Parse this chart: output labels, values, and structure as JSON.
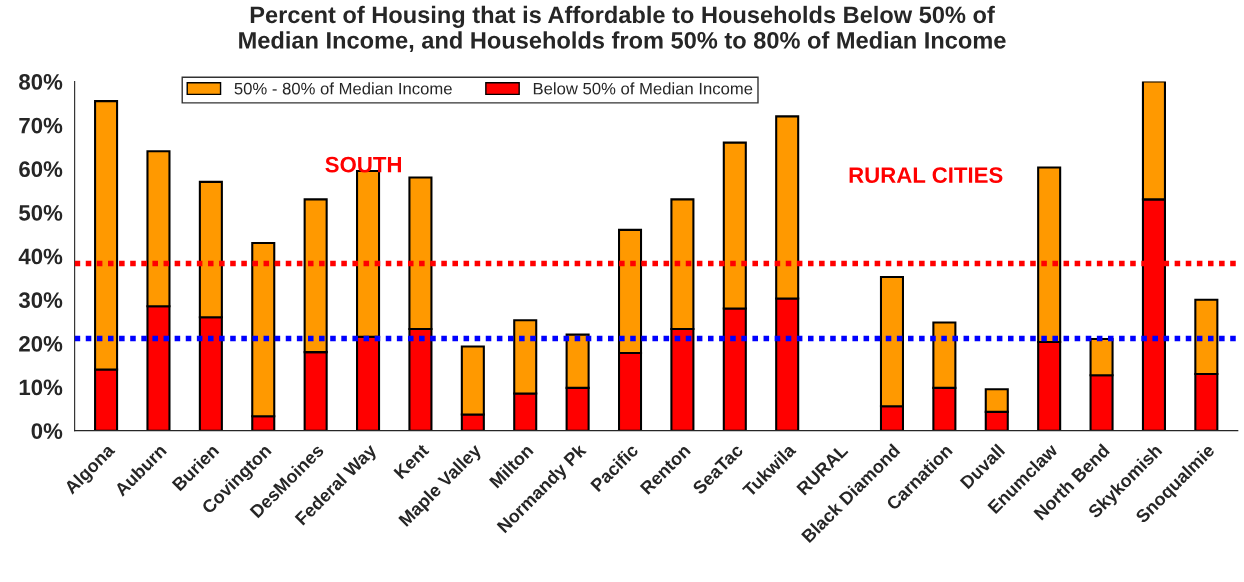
{
  "chart_data": {
    "type": "bar",
    "title": "Percent of Housing that is Affordable to Households Below 50% of\nMedian Income, and Households from 50% to 80% of Median Income",
    "categories": [
      "Algona",
      "Auburn",
      "Burien",
      "Covington",
      "DesMoines",
      "Federal Way",
      "Kent",
      "Maple Valley",
      "Milton",
      "Normandy Pk",
      "Pacific",
      "Renton",
      "SeaTac",
      "Tukwila",
      "RURAL",
      "Black Diamond",
      "Carnation",
      "Duvall",
      "Enumclaw",
      "North Bend",
      "Skykomish",
      "Snoqualmie"
    ],
    "stacked": true,
    "series": [
      {
        "name": "Below 50% of Median Income",
        "color": "#ff0000",
        "values": [
          14,
          28.5,
          26,
          3.3,
          18,
          21.5,
          23.3,
          3.7,
          8.5,
          9.8,
          17.8,
          23.3,
          28,
          30.3,
          null,
          5.6,
          9.8,
          4.3,
          20.3,
          12.7,
          53,
          13
        ]
      },
      {
        "name": "50% - 80% of Median Income",
        "color": "#ff9900",
        "values": [
          61.5,
          35.5,
          31,
          39.7,
          35,
          38,
          34.7,
          15.6,
          16.8,
          12.2,
          28.2,
          29.7,
          38,
          41.7,
          null,
          29.6,
          15,
          5.2,
          40,
          8.3,
          27,
          17
        ]
      }
    ],
    "ylim": [
      0,
      80
    ],
    "yticks": [
      {
        "value": 0,
        "label": "0%"
      },
      {
        "value": 10,
        "label": "10%"
      },
      {
        "value": 20,
        "label": "20%"
      },
      {
        "value": 30,
        "label": "30%"
      },
      {
        "value": 40,
        "label": "40%"
      },
      {
        "value": 50,
        "label": "50%"
      },
      {
        "value": 60,
        "label": "60%"
      },
      {
        "value": 70,
        "label": "70%"
      },
      {
        "value": 80,
        "label": "80%"
      }
    ],
    "ref_lines": [
      {
        "axis": "y",
        "value": 38.3,
        "color": "#ff0000",
        "line_style": "dotted"
      },
      {
        "axis": "y",
        "value": 21.1,
        "color": "#0000ff",
        "line_style": "dotted"
      }
    ],
    "annotations": [
      "SOUTH",
      "RURAL CITIES"
    ],
    "grid": false,
    "legend": "top"
  }
}
